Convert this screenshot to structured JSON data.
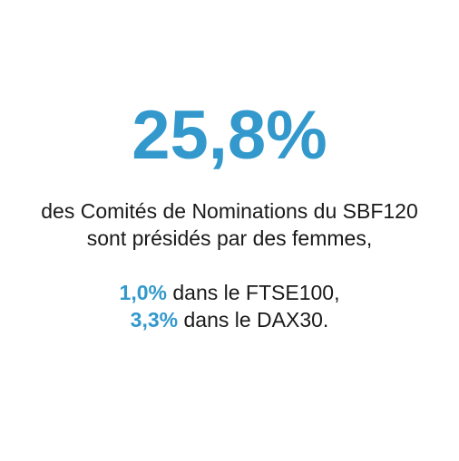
{
  "colors": {
    "accent": "#3399cc",
    "text": "#1a1a1a",
    "background": "#ffffff"
  },
  "headline": {
    "value": "25,8%"
  },
  "description": {
    "line1": "des Comités de Nominations du SBF120",
    "line2": "sont présidés par des femmes,"
  },
  "comparisons": [
    {
      "value": "1,0%",
      "text": " dans le FTSE100,"
    },
    {
      "value": "3,3%",
      "text": " dans le DAX30."
    }
  ]
}
